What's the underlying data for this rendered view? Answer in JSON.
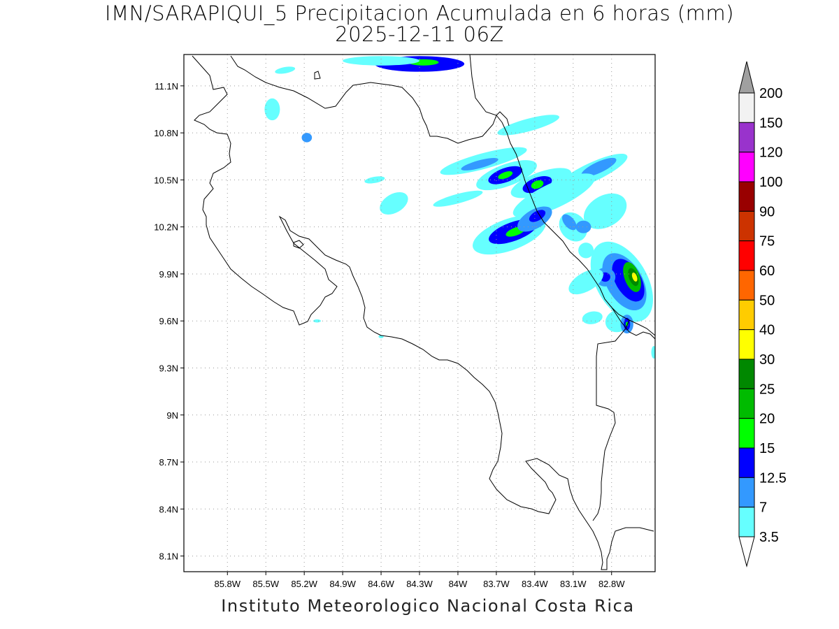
{
  "title": {
    "line1": "IMN/SARAPIQUI_5 Precipitacion Acumulada en 6 horas (mm)",
    "line2": "2025-12-11 06Z"
  },
  "footer": "Instituto Meteorologico Nacional Costa Rica",
  "map": {
    "lon_range": [
      -86.14,
      -82.46
    ],
    "lat_range": [
      8.0,
      11.3
    ],
    "lat_ticks": [
      {
        "value": 11.1,
        "label": "11.1N"
      },
      {
        "value": 10.8,
        "label": "10.8N"
      },
      {
        "value": 10.5,
        "label": "10.5N"
      },
      {
        "value": 10.2,
        "label": "10.2N"
      },
      {
        "value": 9.9,
        "label": "9.9N"
      },
      {
        "value": 9.6,
        "label": "9.6N"
      },
      {
        "value": 9.3,
        "label": "9.3N"
      },
      {
        "value": 9.0,
        "label": "9N"
      },
      {
        "value": 8.7,
        "label": "8.7N"
      },
      {
        "value": 8.4,
        "label": "8.4N"
      },
      {
        "value": 8.1,
        "label": "8.1N"
      }
    ],
    "lon_ticks": [
      {
        "value": -85.8,
        "label": "85.8W"
      },
      {
        "value": -85.5,
        "label": "85.5W"
      },
      {
        "value": -85.2,
        "label": "85.2W"
      },
      {
        "value": -84.9,
        "label": "84.9W"
      },
      {
        "value": -84.6,
        "label": "84.6W"
      },
      {
        "value": -84.3,
        "label": "84.3W"
      },
      {
        "value": -84.0,
        "label": "84W"
      },
      {
        "value": -83.7,
        "label": "83.7W"
      },
      {
        "value": -83.4,
        "label": "83.4W"
      },
      {
        "value": -83.1,
        "label": "83.1W"
      },
      {
        "value": -82.8,
        "label": "82.8W"
      }
    ],
    "grid": "dotted"
  },
  "legend": {
    "labels": [
      "200",
      "150",
      "120",
      "100",
      "90",
      "75",
      "60",
      "50",
      "40",
      "30",
      "25",
      "20",
      "15",
      "12.5",
      "7",
      "3.5"
    ],
    "colors": [
      "#f2f2f2",
      "#9933cc",
      "#ff00ff",
      "#990000",
      "#cc3300",
      "#ff0000",
      "#ff6600",
      "#ffcc00",
      "#ffff00",
      "#008800",
      "#00bb00",
      "#00ff00",
      "#0000ff",
      "#3399ff",
      "#66ffff"
    ],
    "arrow_top_color": "#a0a0a0",
    "arrow_bottom_color": "#ffffff"
  },
  "precip_cells": [
    {
      "lon": -84.3,
      "lat": 11.24,
      "rlon": 0.35,
      "rlat": 0.05,
      "rot": 0,
      "level": 3
    },
    {
      "lon": -84.27,
      "lat": 11.25,
      "rlon": 0.12,
      "rlat": 0.02,
      "rot": 0,
      "level": 4
    },
    {
      "lon": -84.6,
      "lat": 11.26,
      "rlon": 0.3,
      "rlat": 0.03,
      "rot": 0,
      "level": 1
    },
    {
      "lon": -85.35,
      "lat": 11.2,
      "rlon": 0.08,
      "rlat": 0.02,
      "rot": -10,
      "level": 1
    },
    {
      "lon": -85.45,
      "lat": 10.95,
      "rlon": 0.06,
      "rlat": 0.07,
      "rot": 0,
      "level": 1
    },
    {
      "lon": -85.18,
      "lat": 10.77,
      "rlon": 0.04,
      "rlat": 0.03,
      "rot": 0,
      "level": 2
    },
    {
      "lon": -83.45,
      "lat": 10.85,
      "rlon": 0.25,
      "rlat": 0.04,
      "rot": -15,
      "level": 1
    },
    {
      "lon": -83.8,
      "lat": 10.62,
      "rlon": 0.35,
      "rlat": 0.05,
      "rot": -15,
      "level": 1
    },
    {
      "lon": -83.83,
      "lat": 10.6,
      "rlon": 0.15,
      "rlat": 0.025,
      "rot": -15,
      "level": 2
    },
    {
      "lon": -83.62,
      "lat": 10.53,
      "rlon": 0.25,
      "rlat": 0.07,
      "rot": -20,
      "level": 1
    },
    {
      "lon": -83.63,
      "lat": 10.53,
      "rlon": 0.14,
      "rlat": 0.045,
      "rot": -20,
      "level": 3
    },
    {
      "lon": -83.63,
      "lat": 10.53,
      "rlon": 0.06,
      "rlat": 0.02,
      "rot": -20,
      "level": 4
    },
    {
      "lon": -83.35,
      "lat": 10.48,
      "rlon": 0.25,
      "rlat": 0.07,
      "rot": -20,
      "level": 1
    },
    {
      "lon": -83.38,
      "lat": 10.47,
      "rlon": 0.12,
      "rlat": 0.045,
      "rot": -20,
      "level": 3
    },
    {
      "lon": -83.38,
      "lat": 10.47,
      "rlon": 0.05,
      "rlat": 0.025,
      "rot": -20,
      "level": 4
    },
    {
      "lon": -82.95,
      "lat": 10.55,
      "rlon": 0.3,
      "rlat": 0.06,
      "rot": -25,
      "level": 1
    },
    {
      "lon": -82.9,
      "lat": 10.58,
      "rlon": 0.15,
      "rlat": 0.035,
      "rot": -25,
      "level": 2
    },
    {
      "lon": -83.25,
      "lat": 10.4,
      "rlon": 0.35,
      "rlat": 0.08,
      "rot": -25,
      "level": 1
    },
    {
      "lon": -83.6,
      "lat": 10.15,
      "rlon": 0.3,
      "rlat": 0.1,
      "rot": -20,
      "level": 1
    },
    {
      "lon": -83.57,
      "lat": 10.17,
      "rlon": 0.2,
      "rlat": 0.06,
      "rot": -20,
      "level": 3
    },
    {
      "lon": -83.55,
      "lat": 10.17,
      "rlon": 0.08,
      "rlat": 0.025,
      "rot": -20,
      "level": 4
    },
    {
      "lon": -83.4,
      "lat": 10.25,
      "rlon": 0.15,
      "rlat": 0.06,
      "rot": -30,
      "level": 2
    },
    {
      "lon": -83.38,
      "lat": 10.27,
      "rlon": 0.07,
      "rlat": 0.03,
      "rot": -30,
      "level": 3
    },
    {
      "lon": -83.1,
      "lat": 10.2,
      "rlon": 0.1,
      "rlat": 0.1,
      "rot": -40,
      "level": 1
    },
    {
      "lon": -83.13,
      "lat": 10.23,
      "rlon": 0.04,
      "rlat": 0.06,
      "rot": -40,
      "level": 2
    },
    {
      "lon": -82.85,
      "lat": 10.3,
      "rlon": 0.18,
      "rlat": 0.1,
      "rot": -30,
      "level": 1
    },
    {
      "lon": -83.02,
      "lat": 10.2,
      "rlon": 0.06,
      "rlat": 0.04,
      "rot": 0,
      "level": 2
    },
    {
      "lon": -84.0,
      "lat": 10.38,
      "rlon": 0.2,
      "rlat": 0.03,
      "rot": -15,
      "level": 1
    },
    {
      "lon": -84.5,
      "lat": 10.35,
      "rlon": 0.12,
      "rlat": 0.06,
      "rot": -30,
      "level": 1
    },
    {
      "lon": -84.65,
      "lat": 10.5,
      "rlon": 0.08,
      "rlat": 0.02,
      "rot": -10,
      "level": 1
    },
    {
      "lon": -82.72,
      "lat": 9.85,
      "rlon": 0.2,
      "rlat": 0.28,
      "rot": -30,
      "level": 1
    },
    {
      "lon": -82.7,
      "lat": 9.85,
      "rlon": 0.14,
      "rlat": 0.2,
      "rot": -30,
      "level": 2
    },
    {
      "lon": -82.67,
      "lat": 9.86,
      "rlon": 0.1,
      "rlat": 0.15,
      "rot": -30,
      "level": 3
    },
    {
      "lon": -82.64,
      "lat": 9.88,
      "rlon": 0.06,
      "rlat": 0.1,
      "rot": -20,
      "level": 5
    },
    {
      "lon": -82.63,
      "lat": 9.88,
      "rlon": 0.035,
      "rlat": 0.06,
      "rot": -20,
      "level": 6
    },
    {
      "lon": -82.62,
      "lat": 9.88,
      "rlon": 0.018,
      "rlat": 0.03,
      "rot": -20,
      "level": 7
    },
    {
      "lon": -82.85,
      "lat": 9.88,
      "rlon": 0.08,
      "rlat": 0.06,
      "rot": 0,
      "level": 2
    },
    {
      "lon": -82.85,
      "lat": 9.88,
      "rlon": 0.04,
      "rlat": 0.03,
      "rot": 0,
      "level": 3
    },
    {
      "lon": -82.75,
      "lat": 9.6,
      "rlon": 0.1,
      "rlat": 0.07,
      "rot": -20,
      "level": 1
    },
    {
      "lon": -82.68,
      "lat": 9.58,
      "rlon": 0.05,
      "rlat": 0.06,
      "rot": 0,
      "level": 2
    },
    {
      "lon": -82.68,
      "lat": 9.58,
      "rlon": 0.025,
      "rlat": 0.04,
      "rot": 0,
      "level": 3
    },
    {
      "lon": -82.68,
      "lat": 9.58,
      "rlon": 0.01,
      "rlat": 0.015,
      "rot": 0,
      "level": 4
    },
    {
      "lon": -83.0,
      "lat": 9.85,
      "rlon": 0.15,
      "rlat": 0.06,
      "rot": -30,
      "level": 1
    },
    {
      "lon": -82.95,
      "lat": 9.62,
      "rlon": 0.08,
      "rlat": 0.04,
      "rot": -10,
      "level": 1
    },
    {
      "lon": -83.0,
      "lat": 10.05,
      "rlon": 0.06,
      "rlat": 0.05,
      "rot": 0,
      "level": 1
    },
    {
      "lon": -82.47,
      "lat": 9.4,
      "rlon": 0.02,
      "rlat": 0.04,
      "rot": 0,
      "level": 1
    },
    {
      "lon": -85.1,
      "lat": 9.6,
      "rlon": 0.03,
      "rlat": 0.01,
      "rot": 0,
      "level": 1
    },
    {
      "lon": -84.6,
      "lat": 9.5,
      "rlon": 0.02,
      "rlat": 0.01,
      "rot": 0,
      "level": 1
    }
  ]
}
